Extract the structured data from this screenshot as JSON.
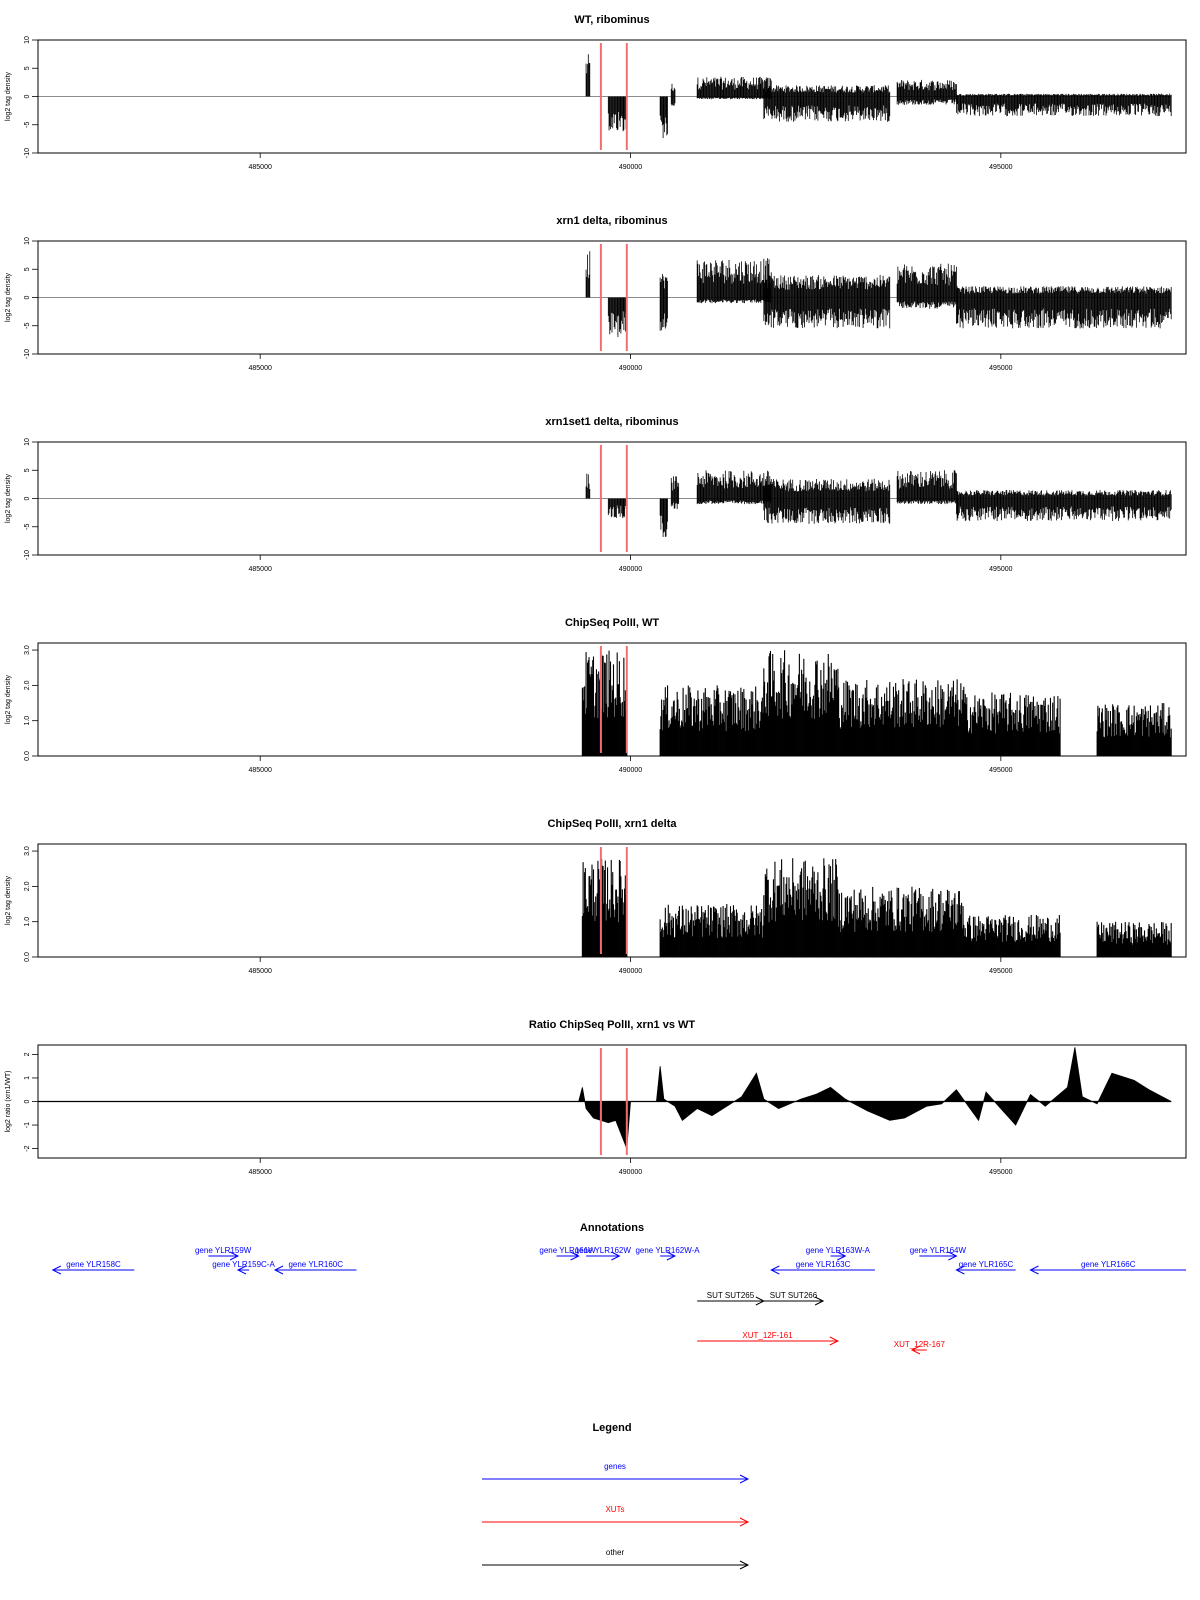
{
  "chart_data": [
    {
      "type": "bar",
      "title": "WT, ribominus",
      "ylabel": "log2 tag density",
      "xlim": [
        482000,
        497500
      ],
      "ylim": [
        -10,
        10
      ],
      "yticks": [
        -10,
        -5,
        0,
        5,
        10
      ],
      "xticks": [
        485000,
        490000,
        495000
      ],
      "markers": [
        489600,
        489950
      ],
      "marker_color": "#f07070",
      "regions": [
        {
          "from": 489400,
          "to": 489450,
          "pos": 7.5,
          "neg": 0
        },
        {
          "from": 489700,
          "to": 489950,
          "pos": 0,
          "neg": 6.5
        },
        {
          "from": 490400,
          "to": 490500,
          "pos": 0,
          "neg": 7.5
        },
        {
          "from": 490550,
          "to": 490600,
          "pos": 2.5,
          "neg": 2
        },
        {
          "from": 490900,
          "to": 491900,
          "pos": 3.5,
          "neg": 0.5
        },
        {
          "from": 491800,
          "to": 493500,
          "pos": 2,
          "neg": 4.5
        },
        {
          "from": 493600,
          "to": 494400,
          "pos": 3,
          "neg": 1.5
        },
        {
          "from": 494400,
          "to": 497300,
          "pos": 0.5,
          "neg": 3.5
        }
      ]
    },
    {
      "type": "bar",
      "title": "xrn1 delta, ribominus",
      "ylabel": "log2 tag density",
      "xlim": [
        482000,
        497500
      ],
      "ylim": [
        -10,
        10
      ],
      "yticks": [
        -10,
        -5,
        0,
        5,
        10
      ],
      "xticks": [
        485000,
        490000,
        495000
      ],
      "markers": [
        489600,
        489950
      ],
      "marker_color": "#f07070",
      "regions": [
        {
          "from": 489400,
          "to": 489450,
          "pos": 8.5,
          "neg": 0
        },
        {
          "from": 489700,
          "to": 489950,
          "pos": 0,
          "neg": 7
        },
        {
          "from": 490400,
          "to": 490500,
          "pos": 4.5,
          "neg": 6.5
        },
        {
          "from": 490900,
          "to": 491900,
          "pos": 7,
          "neg": 1
        },
        {
          "from": 491800,
          "to": 493500,
          "pos": 4,
          "neg": 5.5
        },
        {
          "from": 493600,
          "to": 494400,
          "pos": 6,
          "neg": 2
        },
        {
          "from": 494400,
          "to": 497300,
          "pos": 2,
          "neg": 5.5
        }
      ]
    },
    {
      "type": "bar",
      "title": "xrn1set1 delta, ribominus",
      "ylabel": "log2 tag density",
      "xlim": [
        482000,
        497500
      ],
      "ylim": [
        -10,
        10
      ],
      "yticks": [
        -10,
        -5,
        0,
        5,
        10
      ],
      "xticks": [
        485000,
        490000,
        495000
      ],
      "markers": [
        489600,
        489950
      ],
      "marker_color": "#f07070",
      "regions": [
        {
          "from": 489400,
          "to": 489450,
          "pos": 4.5,
          "neg": 0
        },
        {
          "from": 489700,
          "to": 489950,
          "pos": 0,
          "neg": 3.5
        },
        {
          "from": 490400,
          "to": 490500,
          "pos": 0,
          "neg": 7
        },
        {
          "from": 490550,
          "to": 490650,
          "pos": 4,
          "neg": 2
        },
        {
          "from": 490900,
          "to": 491900,
          "pos": 5,
          "neg": 1
        },
        {
          "from": 491800,
          "to": 493500,
          "pos": 3.5,
          "neg": 4.5
        },
        {
          "from": 493600,
          "to": 494400,
          "pos": 5,
          "neg": 1
        },
        {
          "from": 494400,
          "to": 497300,
          "pos": 1.5,
          "neg": 4
        }
      ]
    },
    {
      "type": "bar",
      "title": "ChipSeq PolII, WT",
      "ylabel": "log2 tag density",
      "xlim": [
        482000,
        497500
      ],
      "ylim": [
        0,
        3.2
      ],
      "yticks": [
        0.0,
        1.0,
        2.0,
        3.0
      ],
      "xticks": [
        485000,
        490000,
        495000
      ],
      "markers": [
        489600,
        489950
      ],
      "marker_color": "#f07070",
      "regions": [
        {
          "from": 489350,
          "to": 489950,
          "pos": 3.0,
          "neg": 0
        },
        {
          "from": 490400,
          "to": 491800,
          "pos": 2.0,
          "neg": 0
        },
        {
          "from": 491800,
          "to": 492800,
          "pos": 3.0,
          "neg": 0
        },
        {
          "from": 492800,
          "to": 494500,
          "pos": 2.2,
          "neg": 0
        },
        {
          "from": 494500,
          "to": 495800,
          "pos": 1.8,
          "neg": 0
        },
        {
          "from": 496300,
          "to": 497300,
          "pos": 1.5,
          "neg": 0
        }
      ]
    },
    {
      "type": "bar",
      "title": "ChipSeq PolII, xrn1 delta",
      "ylabel": "log2 tag density",
      "xlim": [
        482000,
        497500
      ],
      "ylim": [
        0,
        3.2
      ],
      "yticks": [
        0.0,
        1.0,
        2.0,
        3.0
      ],
      "xticks": [
        485000,
        490000,
        495000
      ],
      "markers": [
        489600,
        489950
      ],
      "marker_color": "#f07070",
      "regions": [
        {
          "from": 489350,
          "to": 489950,
          "pos": 2.8,
          "neg": 0
        },
        {
          "from": 490400,
          "to": 491800,
          "pos": 1.5,
          "neg": 0
        },
        {
          "from": 491800,
          "to": 492800,
          "pos": 2.8,
          "neg": 0
        },
        {
          "from": 492800,
          "to": 494500,
          "pos": 2.0,
          "neg": 0
        },
        {
          "from": 494500,
          "to": 495800,
          "pos": 1.2,
          "neg": 0
        },
        {
          "from": 496300,
          "to": 497300,
          "pos": 1.0,
          "neg": 0
        }
      ]
    },
    {
      "type": "area",
      "title": "Ratio ChipSeq PolII, xrn1 vs WT",
      "ylabel": "log2 ratio (xrn1/WT)",
      "xlim": [
        482000,
        497500
      ],
      "ylim": [
        -2.4,
        2.4
      ],
      "yticks": [
        -2,
        -1,
        0,
        1,
        2
      ],
      "xticks": [
        485000,
        490000,
        495000
      ],
      "markers": [
        489600,
        489950
      ],
      "marker_color": "#f07070",
      "x": [
        482000,
        489300,
        489350,
        489400,
        489500,
        489700,
        489800,
        489950,
        490000,
        490350,
        490400,
        490450,
        490600,
        490700,
        490900,
        491100,
        491500,
        491700,
        491800,
        492000,
        492300,
        492500,
        492700,
        492900,
        493200,
        493500,
        493700,
        494000,
        494200,
        494400,
        494700,
        494800,
        495000,
        495200,
        495400,
        495600,
        495900,
        496000,
        496100,
        496300,
        496500,
        496800,
        497000,
        497300
      ],
      "values": [
        0,
        0,
        0.6,
        -0.3,
        -0.7,
        -0.9,
        -0.8,
        -2.0,
        0,
        0,
        1.5,
        0.1,
        -0.2,
        -0.8,
        -0.3,
        -0.6,
        0.2,
        1.2,
        0.1,
        -0.3,
        0.1,
        0.3,
        0.6,
        0.1,
        -0.4,
        -0.8,
        -0.7,
        -0.2,
        -0.1,
        0.5,
        -0.8,
        0.4,
        -0.3,
        -1.0,
        0.3,
        -0.2,
        0.6,
        2.3,
        0.2,
        -0.1,
        1.2,
        0.9,
        0.5,
        0
      ]
    }
  ],
  "annotations": {
    "title": "Annotations",
    "genes_color": "#0000ff",
    "xuts_color": "#ff0000",
    "other_color": "#000000",
    "items": [
      {
        "label": "gene YLR158C",
        "kind": "genes",
        "from": 482200,
        "to": 483300,
        "dir": "left",
        "lane": 1
      },
      {
        "label": "gene YLR159W",
        "kind": "genes",
        "from": 484300,
        "to": 484700,
        "dir": "right",
        "lane": 0
      },
      {
        "label": "gene YLR159C-A",
        "kind": "genes",
        "from": 484700,
        "to": 484850,
        "dir": "left",
        "lane": 1
      },
      {
        "label": "gene YLR160C",
        "kind": "genes",
        "from": 485200,
        "to": 486300,
        "dir": "left",
        "lane": 1
      },
      {
        "label": "gene YLR161W",
        "kind": "genes",
        "from": 489000,
        "to": 489300,
        "dir": "right",
        "lane": 0
      },
      {
        "label": "gene YLR162W",
        "kind": "genes",
        "from": 489400,
        "to": 489850,
        "dir": "right",
        "lane": 0
      },
      {
        "label": "gene YLR162W-A",
        "kind": "genes",
        "from": 490400,
        "to": 490600,
        "dir": "right",
        "lane": 0
      },
      {
        "label": "gene YLR163C",
        "kind": "genes",
        "from": 491900,
        "to": 493300,
        "dir": "left",
        "lane": 1
      },
      {
        "label": "gene YLR163W-A",
        "kind": "genes",
        "from": 492700,
        "to": 492900,
        "dir": "right",
        "lane": 0
      },
      {
        "label": "gene YLR164W",
        "kind": "genes",
        "from": 493900,
        "to": 494400,
        "dir": "right",
        "lane": 0
      },
      {
        "label": "gene YLR165C",
        "kind": "genes",
        "from": 494400,
        "to": 495200,
        "dir": "left",
        "lane": 1
      },
      {
        "label": "gene YLR166C",
        "kind": "genes",
        "from": 495400,
        "to": 497500,
        "dir": "left",
        "lane": 1
      },
      {
        "label": "SUT SUT265",
        "kind": "other",
        "from": 490900,
        "to": 491800,
        "dir": "right",
        "lane": 2
      },
      {
        "label": "SUT SUT266",
        "kind": "other",
        "from": 491800,
        "to": 492600,
        "dir": "right",
        "lane": 2
      },
      {
        "label": "XUT_12F-161",
        "kind": "xuts",
        "from": 490900,
        "to": 492800,
        "dir": "right",
        "lane": 3
      },
      {
        "label": "XUT_12R-167",
        "kind": "xuts",
        "from": 493800,
        "to": 494000,
        "dir": "left",
        "lane": 4
      }
    ]
  },
  "legend": {
    "title": "Legend",
    "items": [
      {
        "label": "genes",
        "color": "#0000ff"
      },
      {
        "label": "XUTs",
        "color": "#ff0000"
      },
      {
        "label": "other",
        "color": "#000000"
      }
    ]
  }
}
